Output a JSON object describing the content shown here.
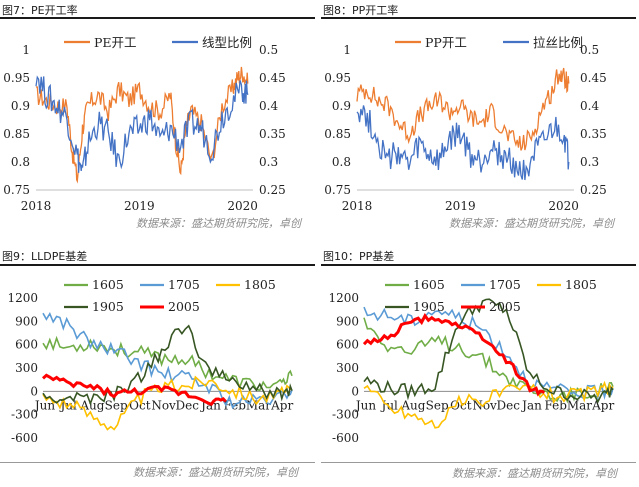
{
  "sources": {
    "top_left": "数据来源：盛达期货研究院，卓创",
    "top_right": "数据来源：盛达期货研究院，卓创",
    "bottom_left": "数据来源：盛达期货研究院，卓创",
    "bottom_right": "数据来源：盛达期货研究院，卓创"
  },
  "colors": {
    "orange": "#ED7D31",
    "blue": "#4472C4",
    "green": "#70AD47",
    "lightblue": "#5B9BD5",
    "yellow": "#FFC000",
    "darkgreen": "#375623",
    "red": "#FF0000"
  },
  "chart_data": [
    {
      "id": "fig7",
      "type": "line",
      "title": "图7：PE开工率",
      "x": [
        "2018",
        "2019",
        "2020"
      ],
      "xrange": [
        2018,
        2020.1
      ],
      "ylim": [
        0.75,
        1.0
      ],
      "yticks": [
        0.75,
        0.8,
        0.85,
        0.9,
        0.95,
        1.0
      ],
      "y2lim": [
        0.25,
        0.5
      ],
      "y2ticks": [
        0.25,
        0.3,
        0.35,
        0.4,
        0.45,
        0.5
      ],
      "series": [
        {
          "name": "PE开工",
          "axis": "left",
          "color": "#ED7D31",
          "x": [
            2018.0,
            2018.1,
            2018.2,
            2018.3,
            2018.35,
            2018.4,
            2018.45,
            2018.5,
            2018.6,
            2018.7,
            2018.8,
            2018.9,
            2019.0,
            2019.1,
            2019.2,
            2019.3,
            2019.35,
            2019.4,
            2019.45,
            2019.5,
            2019.6,
            2019.7,
            2019.8,
            2019.9,
            2019.95,
            2020.0,
            2020.05
          ],
          "y": [
            0.92,
            0.91,
            0.9,
            0.9,
            0.82,
            0.77,
            0.86,
            0.9,
            0.92,
            0.89,
            0.93,
            0.91,
            0.93,
            0.9,
            0.89,
            0.92,
            0.84,
            0.78,
            0.86,
            0.89,
            0.87,
            0.8,
            0.9,
            0.93,
            0.95,
            0.96,
            0.94
          ]
        },
        {
          "name": "线型比例",
          "axis": "right",
          "color": "#4472C4",
          "x": [
            2018.0,
            2018.1,
            2018.2,
            2018.3,
            2018.4,
            2018.45,
            2018.5,
            2018.6,
            2018.7,
            2018.8,
            2018.9,
            2019.0,
            2019.1,
            2019.2,
            2019.3,
            2019.4,
            2019.5,
            2019.6,
            2019.7,
            2019.8,
            2019.9,
            2020.0,
            2020.05
          ],
          "y": [
            0.46,
            0.42,
            0.4,
            0.38,
            0.31,
            0.28,
            0.33,
            0.37,
            0.35,
            0.3,
            0.35,
            0.36,
            0.38,
            0.34,
            0.36,
            0.33,
            0.37,
            0.36,
            0.32,
            0.38,
            0.41,
            0.43,
            0.42
          ]
        }
      ]
    },
    {
      "id": "fig8",
      "type": "line",
      "title": "图8：PP开工率",
      "x": [
        "2018",
        "2019",
        "2020"
      ],
      "xrange": [
        2018,
        2020.1
      ],
      "ylim": [
        0.75,
        1.0
      ],
      "yticks": [
        0.75,
        0.8,
        0.85,
        0.9,
        0.95,
        1.0
      ],
      "y2lim": [
        0.25,
        0.5
      ],
      "y2ticks": [
        0.25,
        0.3,
        0.35,
        0.4,
        0.45,
        0.5
      ],
      "series": [
        {
          "name": "PP开工",
          "axis": "left",
          "color": "#ED7D31",
          "x": [
            2018.0,
            2018.1,
            2018.2,
            2018.3,
            2018.4,
            2018.5,
            2018.6,
            2018.7,
            2018.8,
            2018.9,
            2019.0,
            2019.1,
            2019.2,
            2019.3,
            2019.4,
            2019.5,
            2019.6,
            2019.7,
            2019.8,
            2019.9,
            2019.95,
            2020.0,
            2020.05
          ],
          "y": [
            0.92,
            0.93,
            0.91,
            0.9,
            0.87,
            0.85,
            0.88,
            0.9,
            0.91,
            0.89,
            0.9,
            0.88,
            0.87,
            0.89,
            0.86,
            0.84,
            0.83,
            0.85,
            0.9,
            0.93,
            0.96,
            0.95,
            0.94
          ]
        },
        {
          "name": "拉丝比例",
          "axis": "right",
          "color": "#4472C4",
          "x": [
            2018.0,
            2018.1,
            2018.2,
            2018.3,
            2018.4,
            2018.5,
            2018.6,
            2018.7,
            2018.8,
            2018.9,
            2019.0,
            2019.1,
            2019.2,
            2019.3,
            2019.4,
            2019.5,
            2019.6,
            2019.7,
            2019.8,
            2019.9,
            2020.0,
            2020.05
          ],
          "y": [
            0.4,
            0.38,
            0.34,
            0.3,
            0.32,
            0.29,
            0.33,
            0.31,
            0.3,
            0.34,
            0.35,
            0.31,
            0.3,
            0.33,
            0.31,
            0.3,
            0.28,
            0.31,
            0.33,
            0.36,
            0.35,
            0.3
          ]
        }
      ]
    },
    {
      "id": "fig9",
      "type": "line",
      "title": "图9：LLDPE基差",
      "categories": [
        "Jun",
        "Jul",
        "Aug",
        "Sep",
        "Oct",
        "Nov",
        "Dec",
        "Jan",
        "Feb",
        "Mar",
        "Apr"
      ],
      "ylim": [
        -600,
        1200
      ],
      "yticks": [
        -600,
        -300,
        0,
        300,
        600,
        900,
        1200
      ],
      "series": [
        {
          "name": "1605",
          "color": "#70AD47",
          "x": [
            0,
            1,
            2,
            3,
            4,
            5,
            6,
            7,
            8,
            9,
            10,
            10.5
          ],
          "y": [
            650,
            560,
            620,
            540,
            500,
            430,
            420,
            240,
            140,
            80,
            60,
            200
          ]
        },
        {
          "name": "1705",
          "color": "#5B9BD5",
          "x": [
            0,
            1,
            2,
            3,
            4,
            5,
            6,
            7,
            8,
            9,
            10,
            10.5
          ],
          "y": [
            1000,
            870,
            620,
            520,
            380,
            220,
            180,
            60,
            -150,
            -120,
            -80,
            20
          ]
        },
        {
          "name": "1805",
          "color": "#FFC000",
          "x": [
            0,
            1,
            2,
            3,
            4,
            5,
            6,
            7,
            8,
            9,
            10,
            10.5
          ],
          "y": [
            -80,
            -150,
            -300,
            -450,
            -100,
            50,
            80,
            150,
            20,
            -80,
            -50,
            30
          ]
        },
        {
          "name": "1905",
          "color": "#375623",
          "x": [
            0,
            1,
            2,
            3,
            4,
            5,
            6,
            7,
            8,
            9,
            10,
            10.5
          ],
          "y": [
            -100,
            -80,
            -100,
            -50,
            150,
            500,
            880,
            260,
            120,
            20,
            -30,
            10
          ]
        },
        {
          "name": "2005",
          "color": "#FF0000",
          "x": [
            0,
            1,
            2,
            3,
            4,
            5,
            6,
            7,
            7.7
          ],
          "y": [
            200,
            100,
            60,
            -30,
            0,
            30,
            -30,
            -120,
            -130
          ]
        }
      ]
    },
    {
      "id": "fig10",
      "type": "line",
      "title": "图10：PP基差",
      "categories": [
        "Jun",
        "Jul",
        "Aug",
        "Sep",
        "Oct",
        "Nov",
        "Dec",
        "Jan",
        "Feb",
        "Mar",
        "Apr"
      ],
      "ylim": [
        -600,
        1200
      ],
      "yticks": [
        -600,
        -300,
        0,
        300,
        600,
        900,
        1200
      ],
      "series": [
        {
          "name": "1605",
          "color": "#70AD47",
          "x": [
            0,
            1,
            2,
            3,
            4,
            5,
            6,
            7,
            8,
            9,
            10,
            10.5
          ],
          "y": [
            900,
            600,
            500,
            650,
            580,
            420,
            180,
            30,
            -60,
            -40,
            20,
            60
          ]
        },
        {
          "name": "1705",
          "color": "#5B9BD5",
          "x": [
            0,
            1,
            2,
            3,
            4,
            5,
            6,
            7,
            8,
            9,
            10,
            10.5
          ],
          "y": [
            1000,
            980,
            900,
            1050,
            950,
            800,
            500,
            100,
            20,
            -30,
            0,
            40
          ]
        },
        {
          "name": "1805",
          "color": "#FFC000",
          "x": [
            0,
            1,
            2,
            3,
            4,
            5,
            6,
            7,
            8,
            9,
            10,
            10.5
          ],
          "y": [
            100,
            -200,
            -300,
            -430,
            -150,
            -100,
            0,
            50,
            -50,
            -40,
            20,
            60
          ]
        },
        {
          "name": "1905",
          "color": "#375623",
          "x": [
            0,
            1,
            2,
            3,
            4,
            5,
            6,
            7,
            8,
            9,
            10,
            10.5
          ],
          "y": [
            150,
            40,
            0,
            80,
            900,
            1150,
            1050,
            200,
            0,
            -50,
            -80,
            20
          ]
        },
        {
          "name": "2005",
          "color": "#FF0000",
          "x": [
            0,
            1,
            2,
            3,
            4,
            5,
            6,
            7,
            7.6
          ],
          "y": [
            600,
            700,
            900,
            950,
            850,
            700,
            400,
            50,
            -20
          ]
        }
      ]
    }
  ]
}
